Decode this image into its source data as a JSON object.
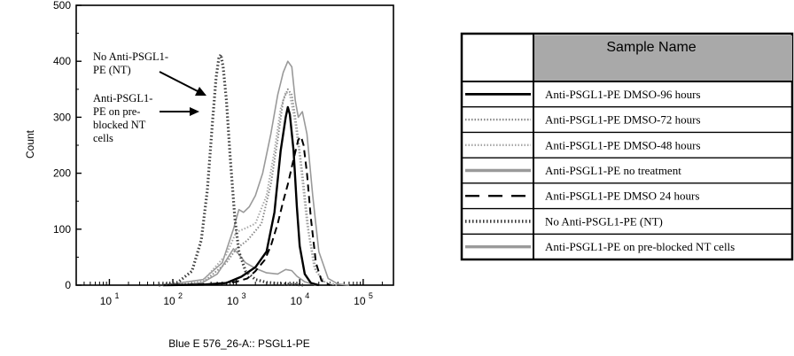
{
  "chart_data": {
    "type": "line",
    "xlabel": "Blue E 576_26-A:: PSGL1-PE",
    "ylabel": "Count",
    "x_scale": "log",
    "xlim": [
      3,
      300000
    ],
    "ylim": [
      0,
      500
    ],
    "y_ticks": [
      "0",
      "100",
      "200",
      "300",
      "400",
      "500"
    ],
    "x_ticks": [
      {
        "value": 10,
        "base": "10",
        "exp": "1"
      },
      {
        "value": 100,
        "base": "10",
        "exp": "2"
      },
      {
        "value": 1000,
        "base": "10",
        "exp": "3"
      },
      {
        "value": 10000,
        "base": "10",
        "exp": "4"
      },
      {
        "value": 100000,
        "base": "10",
        "exp": "5"
      }
    ],
    "annotations": [
      {
        "lines": [
          "No Anti-PSGL1-",
          "PE (NT)"
        ],
        "target_series": 5
      },
      {
        "lines": [
          "Anti-PSGL1-",
          "PE on pre-",
          "blocked NT",
          "cells"
        ],
        "target_series": 6
      }
    ],
    "legend_header": "Sample Name",
    "series": [
      {
        "name": "Anti-PSGL1-PE DMSO-96 hours",
        "color": "#000000",
        "style": "solid-thick",
        "points": [
          [
            70,
            0
          ],
          [
            300,
            1
          ],
          [
            700,
            4
          ],
          [
            1200,
            15
          ],
          [
            2000,
            32
          ],
          [
            3000,
            60
          ],
          [
            4000,
            130
          ],
          [
            5000,
            240
          ],
          [
            6000,
            300
          ],
          [
            6500,
            318
          ],
          [
            7000,
            305
          ],
          [
            8000,
            240
          ],
          [
            9000,
            140
          ],
          [
            10000,
            70
          ],
          [
            12000,
            20
          ],
          [
            15000,
            4
          ],
          [
            20000,
            0
          ]
        ]
      },
      {
        "name": "Anti-PSGL1-PE DMSO-72 hours",
        "color": "#8a8a8a",
        "style": "dotted",
        "points": [
          [
            70,
            0
          ],
          [
            300,
            5
          ],
          [
            700,
            40
          ],
          [
            1000,
            65
          ],
          [
            1500,
            80
          ],
          [
            2500,
            110
          ],
          [
            3500,
            180
          ],
          [
            4500,
            260
          ],
          [
            5500,
            330
          ],
          [
            6500,
            350
          ],
          [
            7500,
            340
          ],
          [
            9000,
            280
          ],
          [
            11000,
            200
          ],
          [
            14000,
            90
          ],
          [
            18000,
            25
          ],
          [
            25000,
            5
          ],
          [
            40000,
            0
          ]
        ]
      },
      {
        "name": "Anti-PSGL1-PE DMSO-48 hours",
        "color": "#a8a8a8",
        "style": "dotted",
        "points": [
          [
            70,
            0
          ],
          [
            300,
            8
          ],
          [
            700,
            55
          ],
          [
            1000,
            95
          ],
          [
            1300,
            100
          ],
          [
            2000,
            110
          ],
          [
            3000,
            160
          ],
          [
            4000,
            240
          ],
          [
            5000,
            315
          ],
          [
            6000,
            345
          ],
          [
            7000,
            340
          ],
          [
            8500,
            290
          ],
          [
            10000,
            230
          ],
          [
            13000,
            110
          ],
          [
            17000,
            30
          ],
          [
            25000,
            5
          ],
          [
            40000,
            0
          ]
        ]
      },
      {
        "name": "Anti-PSGL1-PE no treatment",
        "color": "#9a9a9a",
        "style": "solid-gray",
        "points": [
          [
            70,
            0
          ],
          [
            300,
            10
          ],
          [
            600,
            40
          ],
          [
            900,
            100
          ],
          [
            1100,
            135
          ],
          [
            1300,
            130
          ],
          [
            1600,
            140
          ],
          [
            2000,
            160
          ],
          [
            2600,
            200
          ],
          [
            3500,
            270
          ],
          [
            4500,
            340
          ],
          [
            5500,
            380
          ],
          [
            6500,
            400
          ],
          [
            7500,
            390
          ],
          [
            8500,
            330
          ],
          [
            9500,
            300
          ],
          [
            11000,
            310
          ],
          [
            13000,
            270
          ],
          [
            16000,
            160
          ],
          [
            20000,
            60
          ],
          [
            28000,
            12
          ],
          [
            40000,
            2
          ],
          [
            60000,
            0
          ]
        ]
      },
      {
        "name": "Anti-PSGL1-PE DMSO 24 hours",
        "color": "#000000",
        "style": "dashed",
        "points": [
          [
            70,
            0
          ],
          [
            500,
            2
          ],
          [
            1000,
            6
          ],
          [
            1500,
            12
          ],
          [
            2000,
            25
          ],
          [
            2800,
            45
          ],
          [
            3500,
            70
          ],
          [
            4500,
            110
          ],
          [
            5500,
            150
          ],
          [
            6500,
            180
          ],
          [
            8000,
            225
          ],
          [
            9500,
            260
          ],
          [
            10500,
            265
          ],
          [
            11500,
            250
          ],
          [
            13000,
            200
          ],
          [
            15000,
            120
          ],
          [
            18000,
            40
          ],
          [
            22000,
            8
          ],
          [
            30000,
            0
          ]
        ]
      },
      {
        "name": "No Anti-PSGL1-PE (NT)",
        "color": "#3a3a3a",
        "style": "dotted-thick",
        "points": [
          [
            60,
            0
          ],
          [
            120,
            5
          ],
          [
            200,
            25
          ],
          [
            280,
            80
          ],
          [
            350,
            170
          ],
          [
            420,
            290
          ],
          [
            480,
            370
          ],
          [
            530,
            405
          ],
          [
            570,
            412
          ],
          [
            620,
            390
          ],
          [
            700,
            330
          ],
          [
            800,
            230
          ],
          [
            950,
            120
          ],
          [
            1100,
            60
          ],
          [
            1400,
            25
          ],
          [
            2000,
            10
          ],
          [
            3000,
            5
          ],
          [
            6000,
            2
          ],
          [
            12000,
            0
          ]
        ]
      },
      {
        "name": "Anti-PSGL1-PE on pre-blocked NT cells",
        "color": "#9a9a9a",
        "style": "solid-gray",
        "points": [
          [
            150,
            0
          ],
          [
            300,
            5
          ],
          [
            500,
            20
          ],
          [
            700,
            45
          ],
          [
            900,
            65
          ],
          [
            1100,
            55
          ],
          [
            1400,
            40
          ],
          [
            2000,
            30
          ],
          [
            3000,
            22
          ],
          [
            4500,
            20
          ],
          [
            6000,
            28
          ],
          [
            7500,
            26
          ],
          [
            9000,
            16
          ],
          [
            12000,
            6
          ],
          [
            18000,
            0
          ]
        ]
      }
    ]
  }
}
